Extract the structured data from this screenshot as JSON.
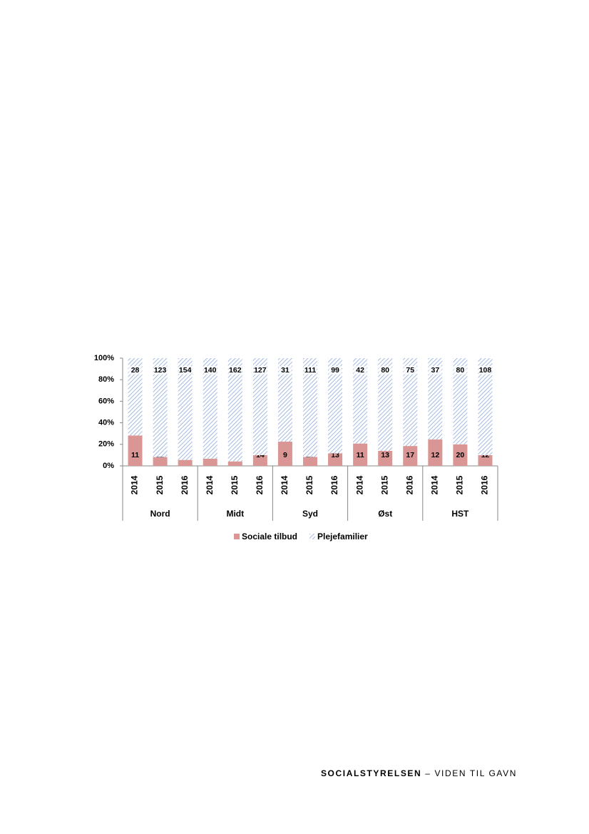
{
  "chart_data": {
    "type": "bar",
    "stacking": "percent",
    "categories": [
      "2014",
      "2015",
      "2016",
      "2014",
      "2015",
      "2016",
      "2014",
      "2015",
      "2016",
      "2014",
      "2015",
      "2016",
      "2014",
      "2015",
      "2016"
    ],
    "groups": [
      "Nord",
      "Midt",
      "Syd",
      "Øst",
      "HST"
    ],
    "series": [
      {
        "name": "Sociale tilbud",
        "color": "#d99694",
        "pattern": "solid",
        "values": [
          11,
          11,
          9,
          10,
          7,
          14,
          9,
          10,
          13,
          11,
          13,
          17,
          12,
          20,
          12
        ]
      },
      {
        "name": "Plejefamilier",
        "color": "#8eaadb",
        "pattern": "hatch",
        "values": [
          28,
          123,
          154,
          140,
          162,
          127,
          31,
          111,
          99,
          42,
          80,
          75,
          37,
          80,
          108
        ]
      }
    ],
    "ylim": [
      0,
      100
    ],
    "yticks": [
      {
        "value": 0,
        "label": "0%"
      },
      {
        "value": 20,
        "label": "20%"
      },
      {
        "value": 40,
        "label": "40%"
      },
      {
        "value": 60,
        "label": "60%"
      },
      {
        "value": 80,
        "label": "80%"
      },
      {
        "value": 100,
        "label": "100%"
      }
    ],
    "legend": "bottom"
  },
  "footer": {
    "brand": "SOCIALSTYRELSEN",
    "tagline": " – VIDEN TIL GAVN"
  }
}
